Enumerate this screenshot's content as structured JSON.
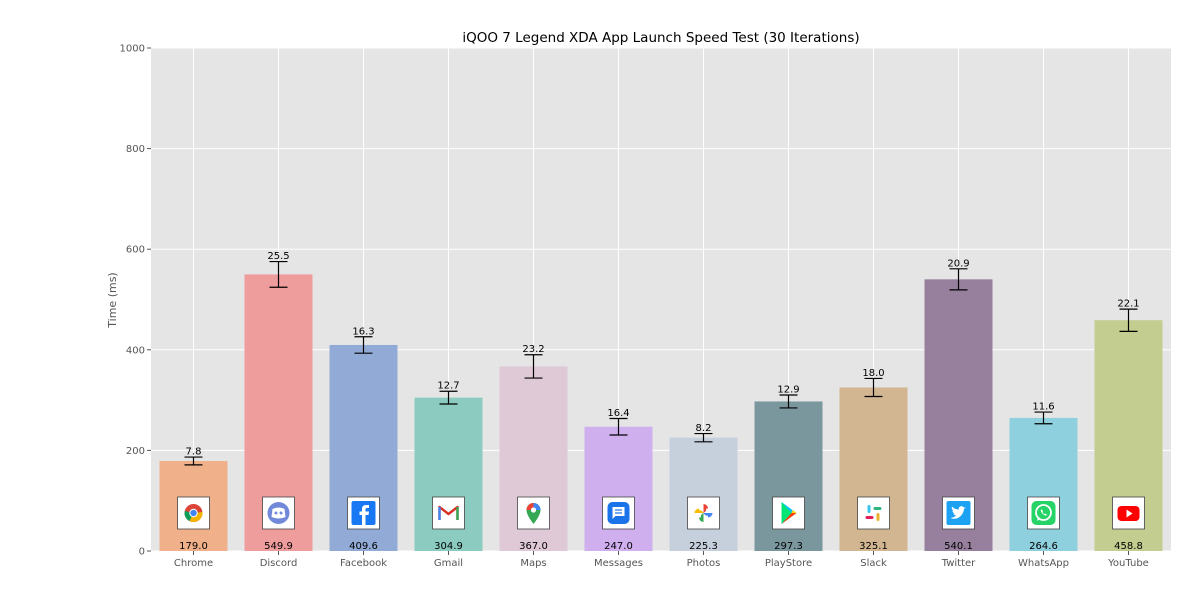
{
  "chart_data": {
    "type": "bar",
    "title": "iQOO 7 Legend XDA App Launch Speed Test (30 Iterations)",
    "xlabel": "",
    "ylabel": "Time (ms)",
    "ylim": [
      0,
      1000
    ],
    "yticks": [
      0,
      200,
      400,
      600,
      800,
      1000
    ],
    "grid": true,
    "categories": [
      "Chrome",
      "Discord",
      "Facebook",
      "Gmail",
      "Maps",
      "Messages",
      "Photos",
      "PlayStore",
      "Slack",
      "Twitter",
      "WhatsApp",
      "YouTube"
    ],
    "values": [
      179.0,
      549.9,
      409.6,
      304.9,
      367.0,
      247.0,
      225.3,
      297.3,
      325.1,
      540.1,
      264.6,
      458.8
    ],
    "value_labels": [
      "179.0",
      "549.9",
      "409.6",
      "304.9",
      "367.0",
      "247.0",
      "225.3",
      "297.3",
      "325.1",
      "540.1",
      "264.6",
      "458.8"
    ],
    "errors": [
      7.8,
      25.5,
      16.3,
      12.7,
      23.2,
      16.4,
      8.2,
      12.9,
      18.0,
      20.9,
      11.6,
      22.1
    ],
    "error_labels": [
      "7.8",
      "25.5",
      "16.3",
      "12.7",
      "23.2",
      "16.4",
      "8.2",
      "12.9",
      "18.0",
      "20.9",
      "11.6",
      "22.1"
    ],
    "colors": [
      "#efb08a",
      "#ef9c9c",
      "#91abd6",
      "#8ccbc0",
      "#e0c9d6",
      "#d0afef",
      "#c6cfdc",
      "#7a979e",
      "#d2b591",
      "#97809e",
      "#8fd0df",
      "#c2cd8f"
    ],
    "icons": [
      "chrome-icon",
      "discord-icon",
      "facebook-icon",
      "gmail-icon",
      "maps-icon",
      "messages-icon",
      "photos-icon",
      "playstore-icon",
      "slack-icon",
      "twitter-icon",
      "whatsapp-icon",
      "youtube-icon"
    ]
  }
}
